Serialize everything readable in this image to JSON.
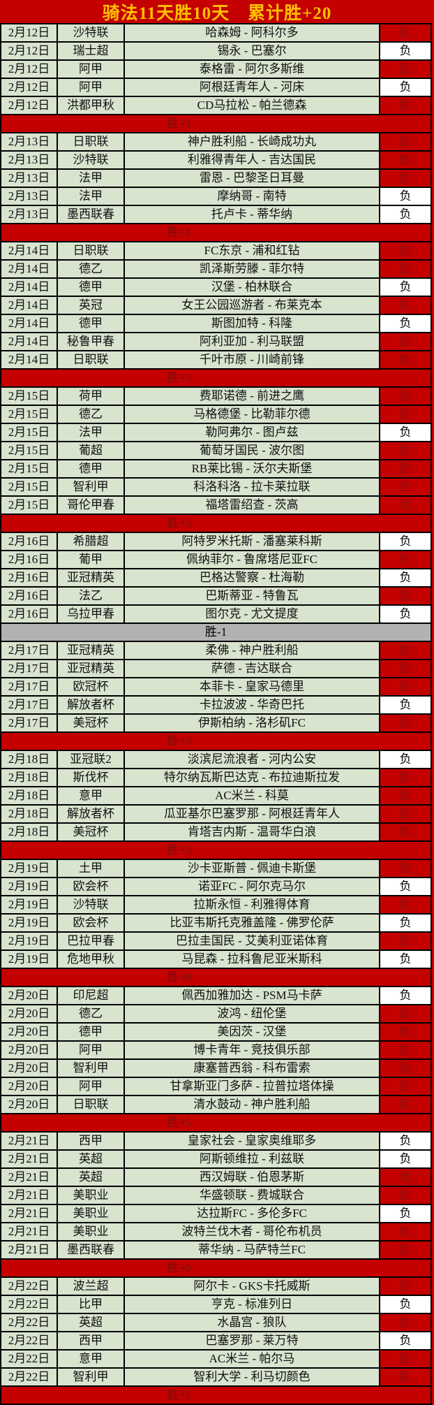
{
  "title": "骑法11天胜10天　累计胜+20",
  "colors": {
    "table_red": "#c40000",
    "cell_green": "#d8e4ce",
    "summary_gray": "#b2b2b2",
    "title_text": "#ffc000",
    "win_text": "#8b1111",
    "summary_text": "#7c0d0d"
  },
  "result_values": {
    "win": "胜",
    "loss": "负",
    "push": "走"
  },
  "sections": [
    {
      "summary": "胜+1",
      "summary_variant": "red",
      "rows": [
        {
          "date": "2月12日",
          "league": "沙特联",
          "match": "哈森姆 - 阿科尔多",
          "result": "胜"
        },
        {
          "date": "2月12日",
          "league": "瑞士超",
          "match": "锡永 - 巴塞尔",
          "result": "负"
        },
        {
          "date": "2月12日",
          "league": "阿甲",
          "match": "泰格雷 - 阿尔多斯维",
          "result": "胜"
        },
        {
          "date": "2月12日",
          "league": "阿甲",
          "match": "阿根廷青年人 - 河床",
          "result": "负"
        },
        {
          "date": "2月12日",
          "league": "洪都甲秋",
          "match": "CD马拉松 - 帕兰德森",
          "result": "胜"
        }
      ]
    },
    {
      "summary": "胜+1",
      "summary_variant": "red",
      "rows": [
        {
          "date": "2月13日",
          "league": "日职联",
          "match": "神户胜利船 - 长崎成功丸",
          "result": "胜"
        },
        {
          "date": "2月13日",
          "league": "沙特联",
          "match": "利雅得青年人 - 吉达国民",
          "result": "胜"
        },
        {
          "date": "2月13日",
          "league": "法甲",
          "match": "雷恩 - 巴黎圣日耳曼",
          "result": "胜"
        },
        {
          "date": "2月13日",
          "league": "法甲",
          "match": "摩纳哥 - 南特",
          "result": "负"
        },
        {
          "date": "2月13日",
          "league": "墨西联春",
          "match": "托卢卡 - 蒂华纳",
          "result": "负"
        }
      ]
    },
    {
      "summary": "胜+3",
      "summary_variant": "red",
      "rows": [
        {
          "date": "2月14日",
          "league": "日职联",
          "match": "FC东京 - 浦和红钻",
          "result": "胜"
        },
        {
          "date": "2月14日",
          "league": "德乙",
          "match": "凯泽斯劳滕 - 菲尔特",
          "result": "胜"
        },
        {
          "date": "2月14日",
          "league": "德甲",
          "match": "汉堡 - 柏林联合",
          "result": "负"
        },
        {
          "date": "2月14日",
          "league": "英冠",
          "match": "女王公园巡游者 - 布莱克本",
          "result": "胜"
        },
        {
          "date": "2月14日",
          "league": "德甲",
          "match": "斯图加特 - 科隆",
          "result": "负"
        },
        {
          "date": "2月14日",
          "league": "秘鲁甲春",
          "match": "阿利亚加 - 利马联盟",
          "result": "胜"
        },
        {
          "date": "2月14日",
          "league": "日职联",
          "match": "千叶市原 - 川崎前锋",
          "result": "胜"
        }
      ]
    },
    {
      "summary": "胜+3",
      "summary_variant": "red",
      "rows": [
        {
          "date": "2月15日",
          "league": "荷甲",
          "match": "费耶诺德 - 前进之鹰",
          "result": "胜"
        },
        {
          "date": "2月15日",
          "league": "德乙",
          "match": "马格德堡 - 比勒菲尔德",
          "result": "胜"
        },
        {
          "date": "2月15日",
          "league": "法甲",
          "match": "勒阿弗尔 - 图卢兹",
          "result": "负"
        },
        {
          "date": "2月15日",
          "league": "葡超",
          "match": "葡萄牙国民 - 波尔图",
          "result": "胜"
        },
        {
          "date": "2月15日",
          "league": "德甲",
          "match": "RB莱比锡 - 沃尔夫斯堡",
          "result": "胜"
        },
        {
          "date": "2月15日",
          "league": "智利甲",
          "match": "科洛科洛 - 拉卡莱拉联",
          "result": "走"
        },
        {
          "date": "2月15日",
          "league": "哥伦甲春",
          "match": "福塔雷绍查 - 茨高",
          "result": "走"
        }
      ]
    },
    {
      "summary": "胜-1",
      "summary_variant": "gray",
      "rows": [
        {
          "date": "2月16日",
          "league": "希腊超",
          "match": "阿特罗米托斯 - 潘塞莱科斯",
          "result": "负"
        },
        {
          "date": "2月16日",
          "league": "葡甲",
          "match": "佩纳菲尔 - 鲁席塔尼亚FC",
          "result": "胜"
        },
        {
          "date": "2月16日",
          "league": "亚冠精英",
          "match": "巴格达警察 - 杜海勒",
          "result": "负"
        },
        {
          "date": "2月16日",
          "league": "法乙",
          "match": "巴斯蒂亚 - 特鲁瓦",
          "result": "胜"
        },
        {
          "date": "2月16日",
          "league": "乌拉甲春",
          "match": "图尔克 - 尤文提度",
          "result": "负"
        }
      ]
    },
    {
      "summary": "胜+3",
      "summary_variant": "red",
      "rows": [
        {
          "date": "2月17日",
          "league": "亚冠精英",
          "match": "柔佛 - 神户胜利船",
          "result": "胜"
        },
        {
          "date": "2月17日",
          "league": "亚冠精英",
          "match": "萨德 - 吉达联合",
          "result": "胜"
        },
        {
          "date": "2月17日",
          "league": "欧冠杯",
          "match": "本菲卡 - 皇家马德里",
          "result": "胜"
        },
        {
          "date": "2月17日",
          "league": "解放者杯",
          "match": "卡拉波波 - 华奇巴托",
          "result": "负"
        },
        {
          "date": "2月17日",
          "league": "美冠杯",
          "match": "伊斯柏纳 - 洛杉矶FC",
          "result": "胜"
        }
      ]
    },
    {
      "summary": "胜+3",
      "summary_variant": "red",
      "rows": [
        {
          "date": "2月18日",
          "league": "亚冠联2",
          "match": "淡滨尼流浪者 - 河内公安",
          "result": "负"
        },
        {
          "date": "2月18日",
          "league": "斯伐杯",
          "match": "特尔纳瓦斯巴达克 - 布拉迪斯拉发",
          "result": "胜"
        },
        {
          "date": "2月18日",
          "league": "意甲",
          "match": "AC米兰 - 科莫",
          "result": "胜"
        },
        {
          "date": "2月18日",
          "league": "解放者杯",
          "match": "瓜亚基尔巴塞罗那 - 阿根廷青年人",
          "result": "胜"
        },
        {
          "date": "2月18日",
          "league": "美冠杯",
          "match": "肯塔吉内斯 - 温哥华白浪",
          "result": "胜"
        }
      ]
    },
    {
      "summary": "胜+0",
      "summary_variant": "red",
      "rows": [
        {
          "date": "2月19日",
          "league": "土甲",
          "match": "沙卡亚斯普 - 佩迪卡斯堡",
          "result": "胜"
        },
        {
          "date": "2月19日",
          "league": "欧会杯",
          "match": "诺亚FC - 阿尔克马尔",
          "result": "负"
        },
        {
          "date": "2月19日",
          "league": "沙特联",
          "match": "拉斯永恒 - 利雅得体育",
          "result": "胜"
        },
        {
          "date": "2月19日",
          "league": "欧会杯",
          "match": "比亚韦斯托克雅盖隆 - 佛罗伦萨",
          "result": "负"
        },
        {
          "date": "2月19日",
          "league": "巴拉甲春",
          "match": "巴拉圭国民 - 艾美利亚诺体育",
          "result": "胜"
        },
        {
          "date": "2月19日",
          "league": "危地甲秋",
          "match": "马昆森 - 拉科鲁尼亚米斯科",
          "result": "负"
        }
      ]
    },
    {
      "summary": "胜+5",
      "summary_variant": "red",
      "rows": [
        {
          "date": "2月20日",
          "league": "印尼超",
          "match": "佩西加雅加达 - PSM马卡萨",
          "result": "负"
        },
        {
          "date": "2月20日",
          "league": "德乙",
          "match": "波鸿 - 纽伦堡",
          "result": "胜"
        },
        {
          "date": "2月20日",
          "league": "德甲",
          "match": "美因茨 - 汉堡",
          "result": "胜"
        },
        {
          "date": "2月20日",
          "league": "阿甲",
          "match": "博卡青年 - 竞技俱乐部",
          "result": "胜"
        },
        {
          "date": "2月20日",
          "league": "智利甲",
          "match": "康塞普西翁 - 科布雷索",
          "result": "胜"
        },
        {
          "date": "2月20日",
          "league": "阿甲",
          "match": "甘拿斯亚门多萨 - 拉普拉塔体操",
          "result": "胜"
        },
        {
          "date": "2月20日",
          "league": "日职联",
          "match": "清水鼓动 - 神户胜利船",
          "result": "胜"
        }
      ]
    },
    {
      "summary": "胜+0",
      "summary_variant": "red",
      "rows": [
        {
          "date": "2月21日",
          "league": "西甲",
          "match": "皇家社会 - 皇家奥维耶多",
          "result": "负"
        },
        {
          "date": "2月21日",
          "league": "英超",
          "match": "阿斯顿维拉 - 利兹联",
          "result": "负"
        },
        {
          "date": "2月21日",
          "league": "英超",
          "match": "西汉姆联 - 伯恩茅斯",
          "result": "走"
        },
        {
          "date": "2月21日",
          "league": "美职业",
          "match": "华盛顿联 - 费城联合",
          "result": "胜"
        },
        {
          "date": "2月21日",
          "league": "美职业",
          "match": "达拉斯FC - 多伦多FC",
          "result": "负"
        },
        {
          "date": "2月21日",
          "league": "美职业",
          "match": "波特兰伐木者 - 哥伦布机员",
          "result": "胜"
        },
        {
          "date": "2月21日",
          "league": "墨西联春",
          "match": "蒂华纳 - 马萨特兰FC",
          "result": "胜"
        }
      ]
    },
    {
      "summary": "胜+2",
      "summary_variant": "red",
      "rows": [
        {
          "date": "2月22日",
          "league": "波兰超",
          "match": "阿尔卡 - GKS卡托威斯",
          "result": "胜"
        },
        {
          "date": "2月22日",
          "league": "比甲",
          "match": "亨克 - 标准列日",
          "result": "负"
        },
        {
          "date": "2月22日",
          "league": "英超",
          "match": "水晶宫 - 狼队",
          "result": "胜"
        },
        {
          "date": "2月22日",
          "league": "西甲",
          "match": "巴塞罗那 - 莱万特",
          "result": "负"
        },
        {
          "date": "2月22日",
          "league": "意甲",
          "match": "AC米兰 - 帕尔马",
          "result": "胜"
        },
        {
          "date": "2月22日",
          "league": "智利甲",
          "match": "智利大学 - 利马切颜色",
          "result": "胜"
        }
      ]
    }
  ]
}
